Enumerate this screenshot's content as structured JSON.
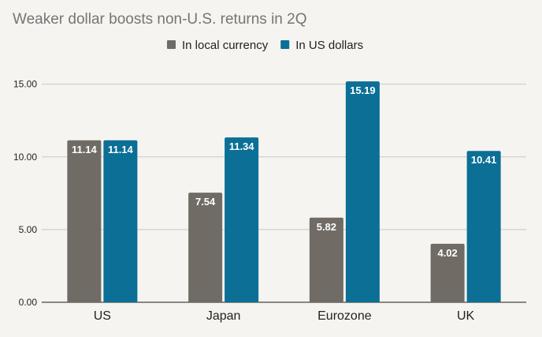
{
  "chart_data": {
    "type": "bar",
    "title": "Weaker dollar boosts non-U.S. returns in 2Q",
    "categories": [
      "US",
      "Japan",
      "Eurozone",
      "UK"
    ],
    "series": [
      {
        "name": "In local currency",
        "values": [
          11.14,
          7.54,
          5.82,
          4.02
        ],
        "color": "#706b65"
      },
      {
        "name": "In US dollars",
        "values": [
          11.14,
          11.34,
          15.19,
          10.41
        ],
        "color": "#0b6f96"
      }
    ],
    "yticks": [
      "0.00",
      "5.00",
      "10.00",
      "15.00"
    ],
    "ylim": [
      0,
      16.5
    ],
    "grid": true,
    "legend_position": "top-center",
    "data_labels": [
      [
        "11.14",
        "7.54",
        "5.82",
        "4.02"
      ],
      [
        "11.14",
        "11.34",
        "15.19",
        "10.41"
      ]
    ]
  }
}
